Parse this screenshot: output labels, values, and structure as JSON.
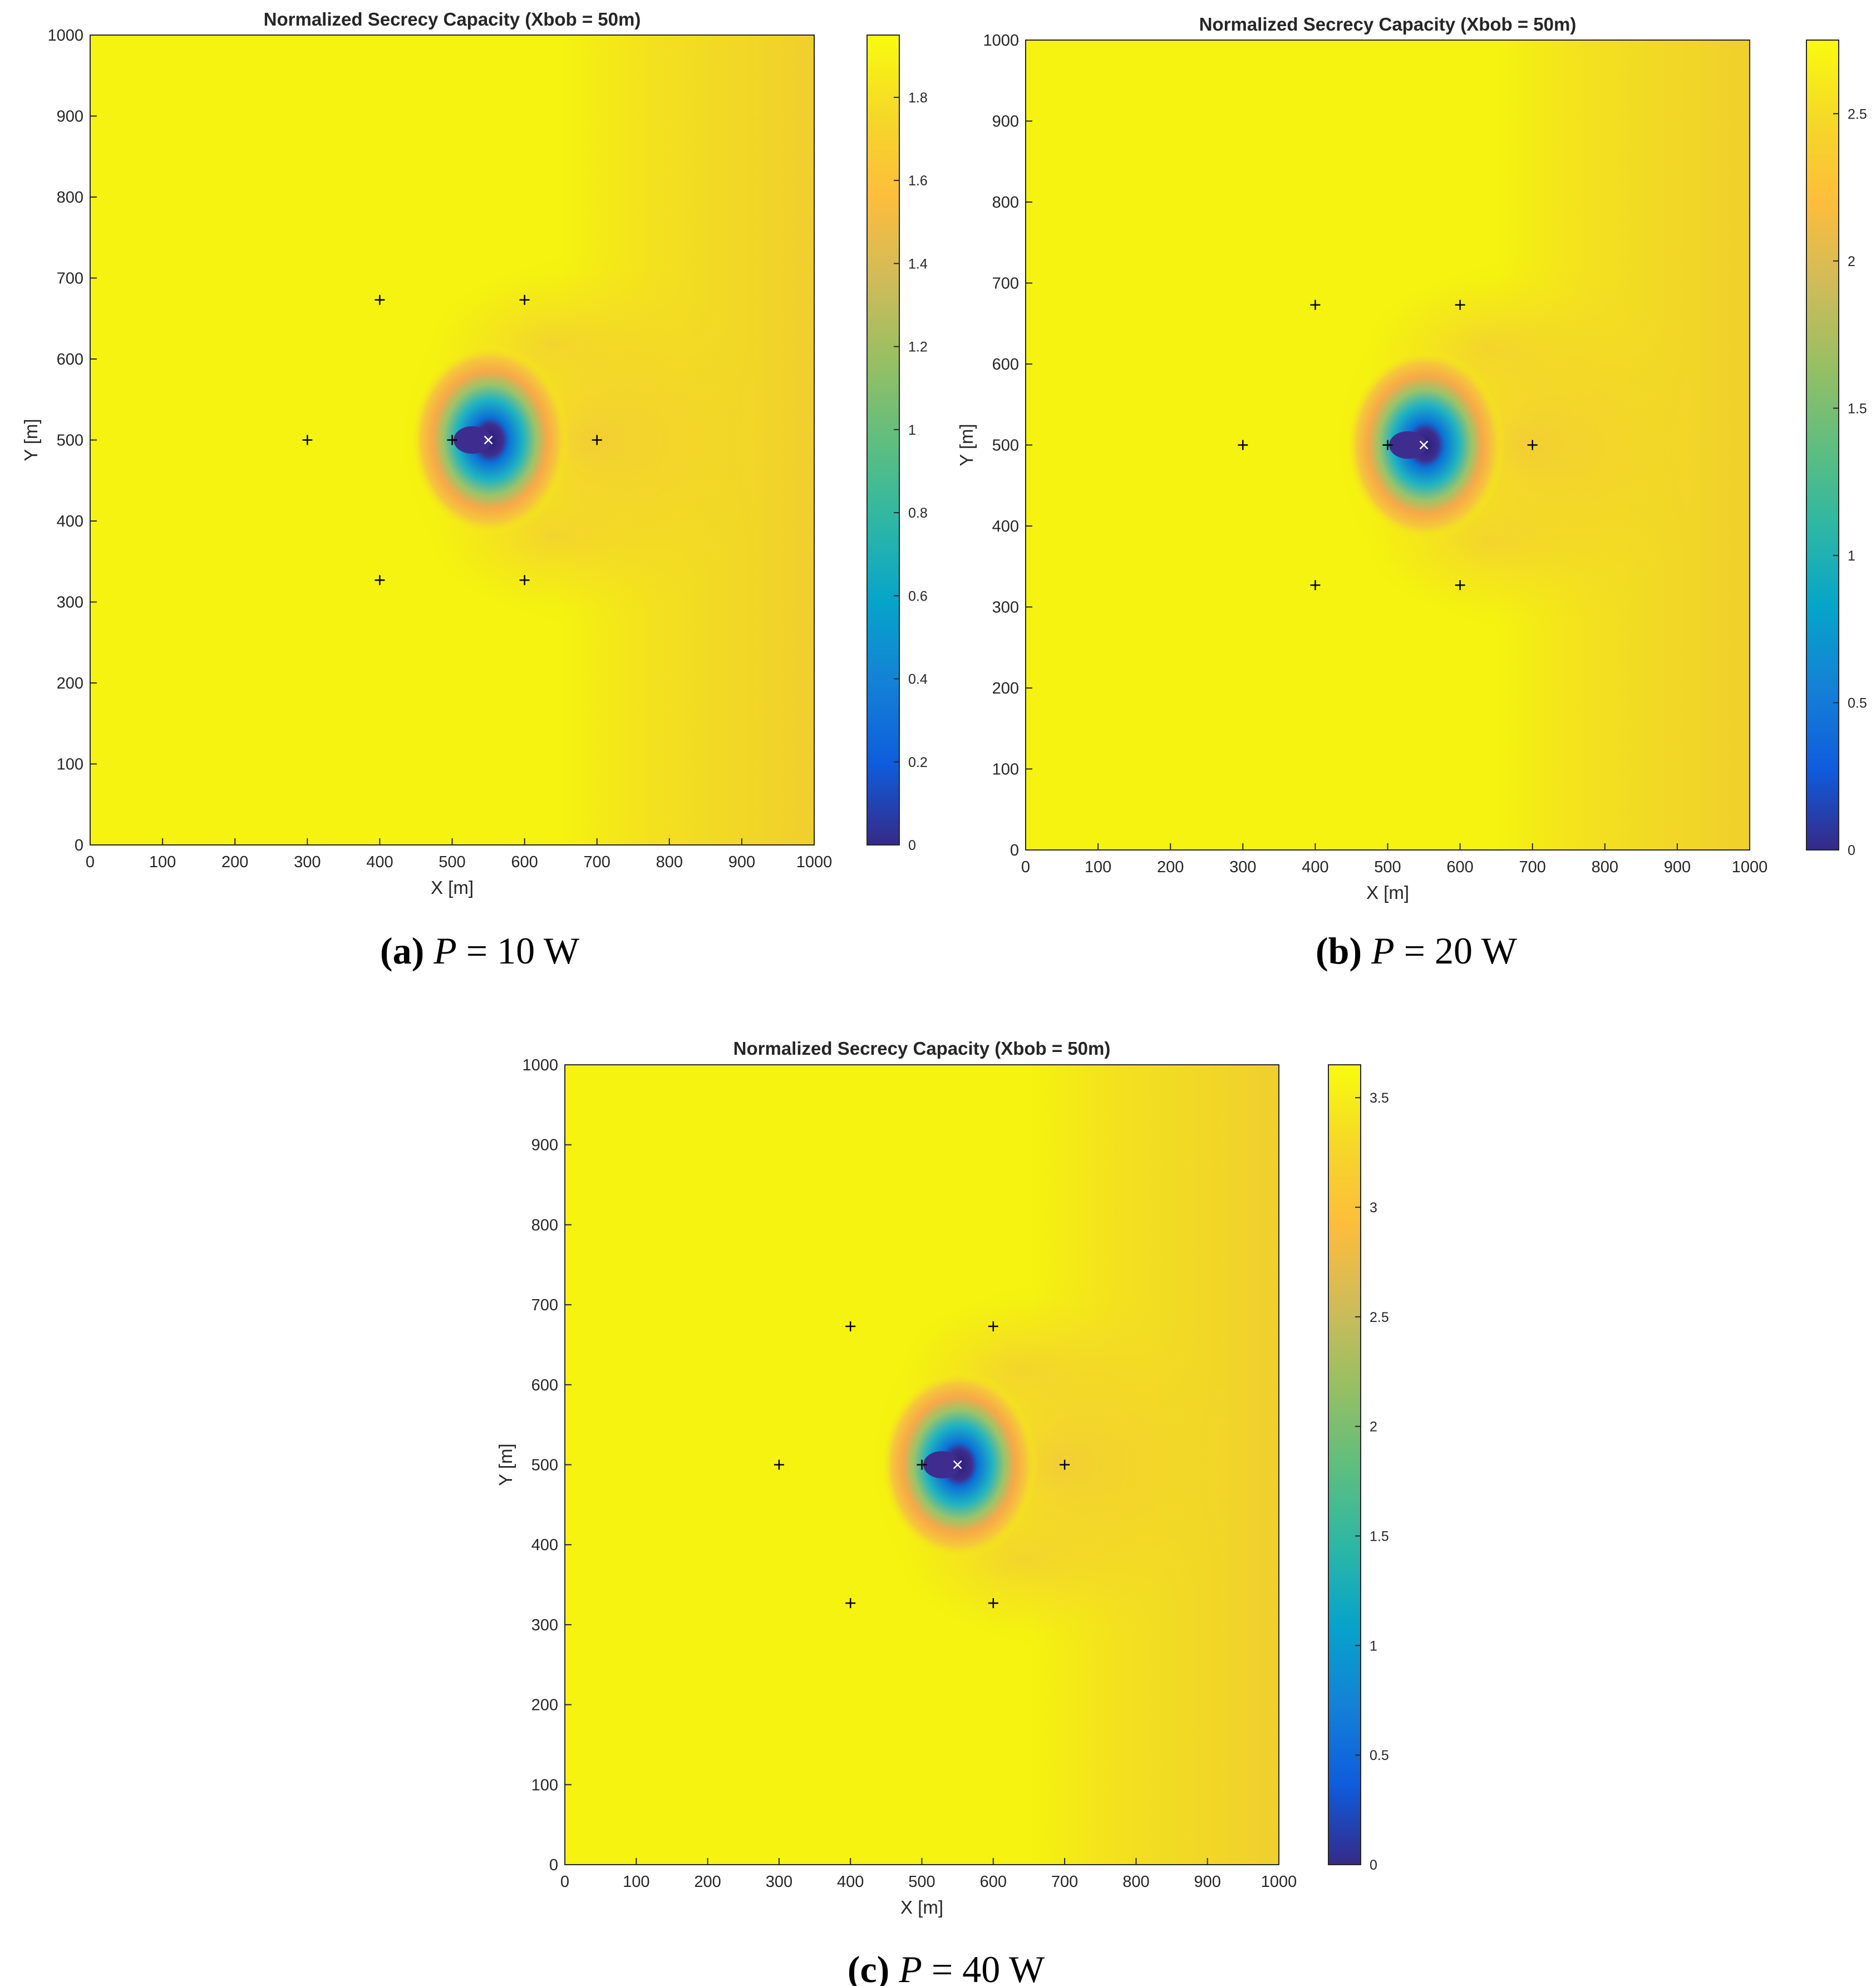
{
  "chart_data": [
    {
      "type": "heatmap",
      "title": "Normalized Secrecy Capacity (Xbob = 50m)",
      "xlabel": "X [m]",
      "ylabel": "Y [m]",
      "xlim": [
        0,
        1000
      ],
      "ylim": [
        0,
        1000
      ],
      "xticks": [
        0,
        100,
        200,
        300,
        400,
        500,
        600,
        700,
        800,
        900,
        1000
      ],
      "yticks": [
        0,
        100,
        200,
        300,
        400,
        500,
        600,
        700,
        800,
        900,
        1000
      ],
      "colormap": "parula",
      "colorbar": {
        "min": 0,
        "max": 1.95,
        "ticks": [
          0,
          0.2,
          0.4,
          0.6,
          0.8,
          1,
          1.2,
          1.4,
          1.6,
          1.8
        ],
        "tick_labels": [
          "0",
          "0.2",
          "0.4",
          "0.6",
          "0.8",
          "1",
          "1.2",
          "1.4",
          "1.6",
          "1.8"
        ]
      },
      "background_value": 1.93,
      "markers_plus": [
        [
          300,
          500
        ],
        [
          400,
          673
        ],
        [
          600,
          673
        ],
        [
          400,
          327
        ],
        [
          600,
          327
        ],
        [
          500,
          500
        ],
        [
          700,
          500
        ]
      ],
      "markers_x": [
        [
          550,
          500
        ]
      ],
      "grid": false,
      "caption": {
        "letter": "(a)",
        "variable": "P",
        "equals": " = ",
        "value": "10",
        "unit": " W"
      }
    },
    {
      "type": "heatmap",
      "title": "Normalized Secrecy Capacity (Xbob = 50m)",
      "xlabel": "X [m]",
      "ylabel": "Y [m]",
      "xlim": [
        0,
        1000
      ],
      "ylim": [
        0,
        1000
      ],
      "xticks": [
        0,
        100,
        200,
        300,
        400,
        500,
        600,
        700,
        800,
        900,
        1000
      ],
      "yticks": [
        0,
        100,
        200,
        300,
        400,
        500,
        600,
        700,
        800,
        900,
        1000
      ],
      "colormap": "parula",
      "colorbar": {
        "min": 0,
        "max": 2.75,
        "ticks": [
          0,
          0.5,
          1,
          1.5,
          2,
          2.5
        ],
        "tick_labels": [
          "0",
          "0.5",
          "1",
          "1.5",
          "2",
          "2.5"
        ]
      },
      "background_value": 2.73,
      "markers_plus": [
        [
          300,
          500
        ],
        [
          400,
          673
        ],
        [
          600,
          673
        ],
        [
          400,
          327
        ],
        [
          600,
          327
        ],
        [
          500,
          500
        ],
        [
          700,
          500
        ]
      ],
      "markers_x": [
        [
          550,
          500
        ]
      ],
      "grid": false,
      "caption": {
        "letter": "(b)",
        "variable": "P",
        "equals": " = ",
        "value": "20",
        "unit": " W"
      }
    },
    {
      "type": "heatmap",
      "title": "Normalized Secrecy Capacity (Xbob = 50m)",
      "xlabel": "X [m]",
      "ylabel": "Y [m]",
      "xlim": [
        0,
        1000
      ],
      "ylim": [
        0,
        1000
      ],
      "xticks": [
        0,
        100,
        200,
        300,
        400,
        500,
        600,
        700,
        800,
        900,
        1000
      ],
      "yticks": [
        0,
        100,
        200,
        300,
        400,
        500,
        600,
        700,
        800,
        900,
        1000
      ],
      "colormap": "parula",
      "colorbar": {
        "min": 0,
        "max": 3.65,
        "ticks": [
          0,
          0.5,
          1,
          1.5,
          2,
          2.5,
          3,
          3.5
        ],
        "tick_labels": [
          "0",
          "0.5",
          "1",
          "1.5",
          "2",
          "2.5",
          "3",
          "3.5"
        ]
      },
      "background_value": 3.62,
      "markers_plus": [
        [
          300,
          500
        ],
        [
          400,
          673
        ],
        [
          600,
          673
        ],
        [
          400,
          327
        ],
        [
          600,
          327
        ],
        [
          500,
          500
        ],
        [
          700,
          500
        ]
      ],
      "markers_x": [
        [
          550,
          500
        ]
      ],
      "grid": false,
      "caption": {
        "letter": "(c)",
        "variable": "P",
        "equals": " = ",
        "value": "40",
        "unit": " W"
      }
    }
  ],
  "colors": {
    "background": "#ffffff",
    "plot_field": "#f5f30f",
    "far_field": "#f2d22b",
    "orange_ring": "#f7a948",
    "cyan": "#1fb3c2",
    "blue": "#0b72d8",
    "core": "#3e2d8e",
    "axis": "#262626",
    "marker": "#000000",
    "marker_x": "#ffffff"
  }
}
